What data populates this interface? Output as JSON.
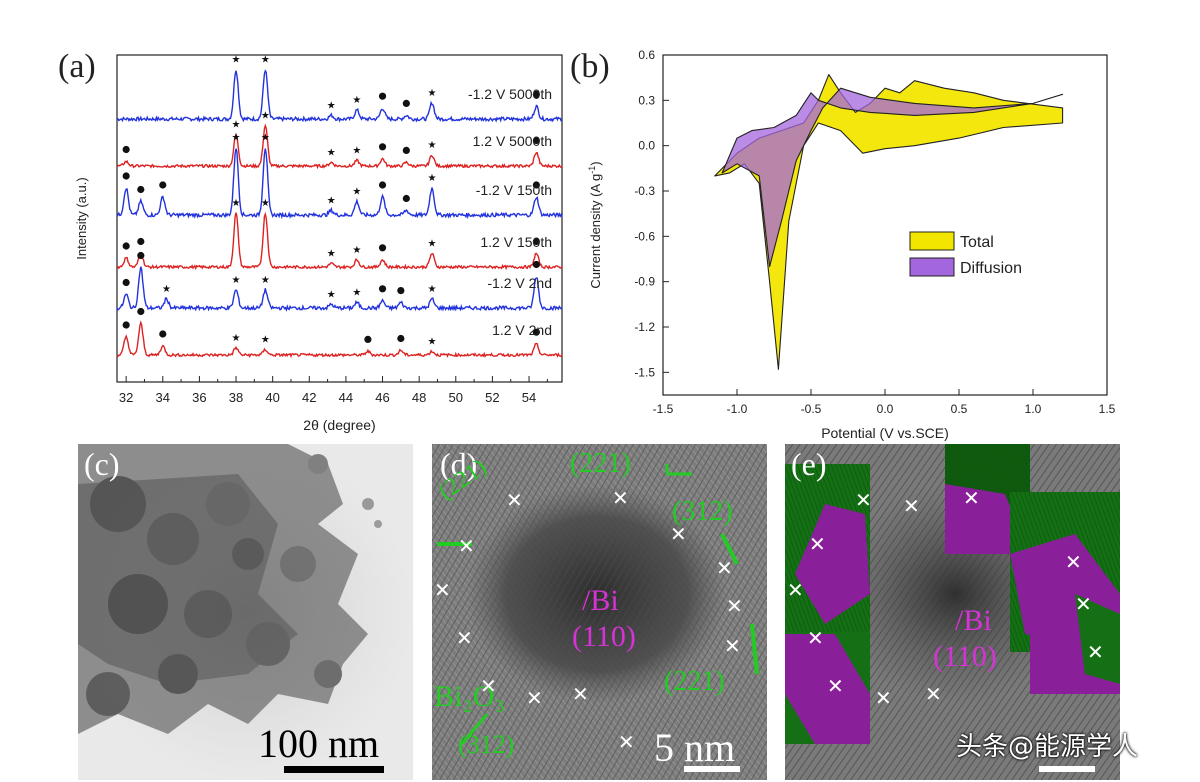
{
  "panels": {
    "a": {
      "label": "(a)"
    },
    "b": {
      "label": "(b)"
    },
    "c": {
      "label": "(c)",
      "scale": "100 nm"
    },
    "d": {
      "label": "(d)",
      "scale": "5 nm",
      "annotations": {
        "bi": "Bi",
        "bi_plane": "(110)",
        "p221_top": "(221)",
        "p312_right": "(312)",
        "p221_right": "(221)",
        "bi2o3": "Bi₂O₃",
        "p312_bottom": "(312)",
        "p221_left": "(221)"
      }
    },
    "e": {
      "label": "(e)",
      "annotations": {
        "bi": "Bi",
        "bi_plane": "(110)"
      }
    }
  },
  "watermark": "头条@能源学人",
  "colors": {
    "blue": "#2233dd",
    "red": "#dd2222",
    "yellow": "#f2e600",
    "purple": "#a366dd",
    "green_ann": "#22cc22",
    "magenta_ann": "#d633d6"
  },
  "chart_data": [
    {
      "type": "line",
      "panel": "a",
      "xlabel": "2θ (degree)",
      "ylabel": "Intensity (a.u.)",
      "xlim": [
        31.5,
        55.8
      ],
      "xticks": [
        32,
        34,
        36,
        38,
        40,
        42,
        44,
        46,
        48,
        50,
        52,
        54
      ],
      "series": [
        {
          "name": "-1.2 V 5000th",
          "color": "#2233dd",
          "offset": 5,
          "noise": 0.04,
          "peaks": [
            [
              38.0,
              0.55
            ],
            [
              39.6,
              0.55
            ],
            [
              43.2,
              0.04
            ],
            [
              44.6,
              0.1
            ],
            [
              46.0,
              0.12
            ],
            [
              47.3,
              0.04
            ],
            [
              48.7,
              0.18
            ],
            [
              54.4,
              0.14
            ]
          ],
          "dots": [
            54.4,
            46.0,
            47.3
          ],
          "stars": [
            38.0,
            39.6,
            43.2,
            44.6,
            48.7
          ]
        },
        {
          "name": "1.2 V 5000th",
          "color": "#dd2222",
          "offset": 4,
          "noise": 0.03,
          "peaks": [
            [
              32.0,
              0.05
            ],
            [
              38.0,
              0.35
            ],
            [
              39.6,
              0.45
            ],
            [
              43.2,
              0.04
            ],
            [
              44.6,
              0.06
            ],
            [
              46.0,
              0.08
            ],
            [
              47.3,
              0.04
            ],
            [
              48.7,
              0.12
            ],
            [
              54.4,
              0.15
            ]
          ],
          "dots": [
            32.0,
            46.0,
            47.3,
            54.4
          ],
          "stars": [
            38.0,
            39.6,
            43.2,
            44.6,
            48.7
          ]
        },
        {
          "name": "-1.2 V 150th",
          "color": "#2233dd",
          "offset": 3,
          "noise": 0.04,
          "peaks": [
            [
              32.0,
              0.3
            ],
            [
              32.8,
              0.15
            ],
            [
              34.0,
              0.2
            ],
            [
              38.0,
              0.75
            ],
            [
              39.6,
              0.75
            ],
            [
              43.2,
              0.05
            ],
            [
              44.6,
              0.15
            ],
            [
              46.0,
              0.2
            ],
            [
              47.3,
              0.05
            ],
            [
              48.7,
              0.3
            ],
            [
              54.4,
              0.2
            ]
          ],
          "dots": [
            32.0,
            32.8,
            34.0,
            46.0,
            47.3,
            54.4
          ],
          "stars": [
            38.0,
            39.6,
            43.2,
            44.6,
            48.7
          ]
        },
        {
          "name": "1.2 V 150th",
          "color": "#dd2222",
          "offset": 2,
          "noise": 0.03,
          "peaks": [
            [
              32.0,
              0.1
            ],
            [
              32.8,
              0.15
            ],
            [
              38.0,
              0.6
            ],
            [
              39.6,
              0.6
            ],
            [
              43.2,
              0.04
            ],
            [
              44.6,
              0.08
            ],
            [
              46.0,
              0.08
            ],
            [
              48.7,
              0.15
            ],
            [
              54.4,
              0.15
            ]
          ],
          "dots": [
            32.0,
            32.8,
            46.0,
            54.4
          ],
          "stars": [
            38.0,
            39.6,
            43.2,
            44.6,
            48.7
          ]
        },
        {
          "name": "-1.2 V 2nd",
          "color": "#2233dd",
          "offset": 1,
          "noise": 0.04,
          "peaks": [
            [
              32.0,
              0.15
            ],
            [
              32.8,
              0.45
            ],
            [
              34.2,
              0.1
            ],
            [
              38.0,
              0.2
            ],
            [
              39.6,
              0.2
            ],
            [
              43.2,
              0.04
            ],
            [
              44.6,
              0.06
            ],
            [
              46.0,
              0.08
            ],
            [
              47.0,
              0.06
            ],
            [
              48.7,
              0.1
            ],
            [
              54.4,
              0.35
            ]
          ],
          "dots": [
            32.0,
            32.8,
            46.0,
            47.0,
            54.4
          ],
          "stars": [
            34.2,
            38.0,
            39.6,
            43.2,
            44.6,
            48.7
          ]
        },
        {
          "name": "1.2 V 2nd",
          "color": "#dd2222",
          "offset": 0,
          "noise": 0.03,
          "peaks": [
            [
              32.0,
              0.2
            ],
            [
              32.8,
              0.35
            ],
            [
              34.0,
              0.1
            ],
            [
              38.0,
              0.08
            ],
            [
              39.6,
              0.06
            ],
            [
              45.2,
              0.04
            ],
            [
              47.0,
              0.05
            ],
            [
              48.7,
              0.04
            ],
            [
              54.4,
              0.12
            ]
          ],
          "dots": [
            32.0,
            32.8,
            34.0,
            45.2,
            47.0,
            54.4
          ],
          "stars": [
            38.0,
            39.6,
            48.7
          ]
        }
      ]
    },
    {
      "type": "area",
      "panel": "b",
      "xlabel": "Potential (V vs.SCE)",
      "ylabel": "Current density (A g",
      "ylabel_sup": "-1",
      "ylabel_end": ")",
      "xlim": [
        -1.5,
        1.5
      ],
      "ylim": [
        -1.65,
        0.6
      ],
      "xticks": [
        -1.5,
        -1.0,
        -0.5,
        0.0,
        0.5,
        1.0,
        1.5
      ],
      "yticks": [
        0.6,
        0.3,
        0.0,
        -0.3,
        -0.6,
        -0.9,
        -1.2,
        -1.5
      ],
      "legend": [
        {
          "name": "Total",
          "color": "#f2e600"
        },
        {
          "name": "Diffusion",
          "color": "#a366dd"
        }
      ],
      "legend_position": "center-right",
      "series": [
        {
          "name": "Total",
          "color": "#f2e600",
          "points": [
            [
              -1.15,
              -0.2
            ],
            [
              -1.0,
              -0.05
            ],
            [
              -0.85,
              0.05
            ],
            [
              -0.7,
              0.1
            ],
            [
              -0.55,
              0.15
            ],
            [
              -0.45,
              0.3
            ],
            [
              -0.38,
              0.47
            ],
            [
              -0.3,
              0.35
            ],
            [
              -0.2,
              0.22
            ],
            [
              -0.1,
              0.28
            ],
            [
              0.0,
              0.38
            ],
            [
              0.1,
              0.35
            ],
            [
              0.2,
              0.43
            ],
            [
              0.4,
              0.38
            ],
            [
              0.6,
              0.35
            ],
            [
              0.8,
              0.3
            ],
            [
              1.2,
              0.25
            ],
            [
              1.2,
              0.15
            ],
            [
              0.8,
              0.12
            ],
            [
              0.5,
              0.05
            ],
            [
              0.2,
              0.0
            ],
            [
              0.0,
              -0.02
            ],
            [
              -0.15,
              -0.05
            ],
            [
              -0.3,
              0.1
            ],
            [
              -0.45,
              0.15
            ],
            [
              -0.55,
              0.0
            ],
            [
              -0.65,
              -0.5
            ],
            [
              -0.72,
              -1.48
            ],
            [
              -0.78,
              -0.9
            ],
            [
              -0.85,
              -0.25
            ],
            [
              -0.95,
              -0.12
            ],
            [
              -1.05,
              -0.18
            ],
            [
              -1.15,
              -0.2
            ]
          ]
        },
        {
          "name": "Diffusion",
          "color": "#a366dd",
          "points": [
            [
              -1.1,
              -0.18
            ],
            [
              -1.0,
              0.05
            ],
            [
              -0.9,
              0.1
            ],
            [
              -0.75,
              0.12
            ],
            [
              -0.6,
              0.2
            ],
            [
              -0.5,
              0.35
            ],
            [
              -0.45,
              0.3
            ],
            [
              -0.3,
              0.25
            ],
            [
              -0.1,
              0.22
            ],
            [
              0.2,
              0.2
            ],
            [
              0.6,
              0.22
            ],
            [
              1.0,
              0.28
            ],
            [
              1.2,
              0.34
            ],
            [
              1.0,
              0.28
            ],
            [
              0.6,
              0.25
            ],
            [
              0.2,
              0.28
            ],
            [
              -0.1,
              0.32
            ],
            [
              -0.3,
              0.38
            ],
            [
              -0.42,
              0.25
            ],
            [
              -0.5,
              0.1
            ],
            [
              -0.6,
              -0.1
            ],
            [
              -0.7,
              -0.5
            ],
            [
              -0.78,
              -0.8
            ],
            [
              -0.85,
              -0.2
            ],
            [
              -1.0,
              -0.12
            ],
            [
              -1.1,
              -0.18
            ]
          ]
        }
      ]
    }
  ]
}
